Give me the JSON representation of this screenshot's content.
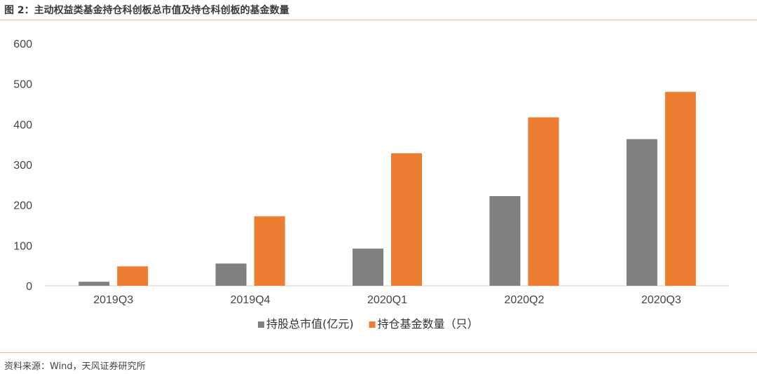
{
  "figure": {
    "title": "图 2：主动权益类基金持仓科创板总市值及持仓科创板的基金数量",
    "source": "资料来源：Wind，天风证券研究所"
  },
  "colors": {
    "rule": "#f0b58a"
  },
  "chart_data": {
    "type": "bar",
    "categories": [
      "2019Q3",
      "2019Q4",
      "2020Q1",
      "2020Q2",
      "2020Q3"
    ],
    "series": [
      {
        "name": "持股总市值(亿元)",
        "values": [
          10,
          55,
          92,
          222,
          363
        ],
        "color": "#808080"
      },
      {
        "name": "持仓基金数量（只）",
        "values": [
          48,
          172,
          328,
          417,
          480
        ],
        "color": "#ed7d31"
      }
    ],
    "ylim": [
      0,
      600
    ],
    "yticks": [
      0,
      100,
      200,
      300,
      400,
      500,
      600
    ],
    "grid": false,
    "legend": "bottom"
  }
}
